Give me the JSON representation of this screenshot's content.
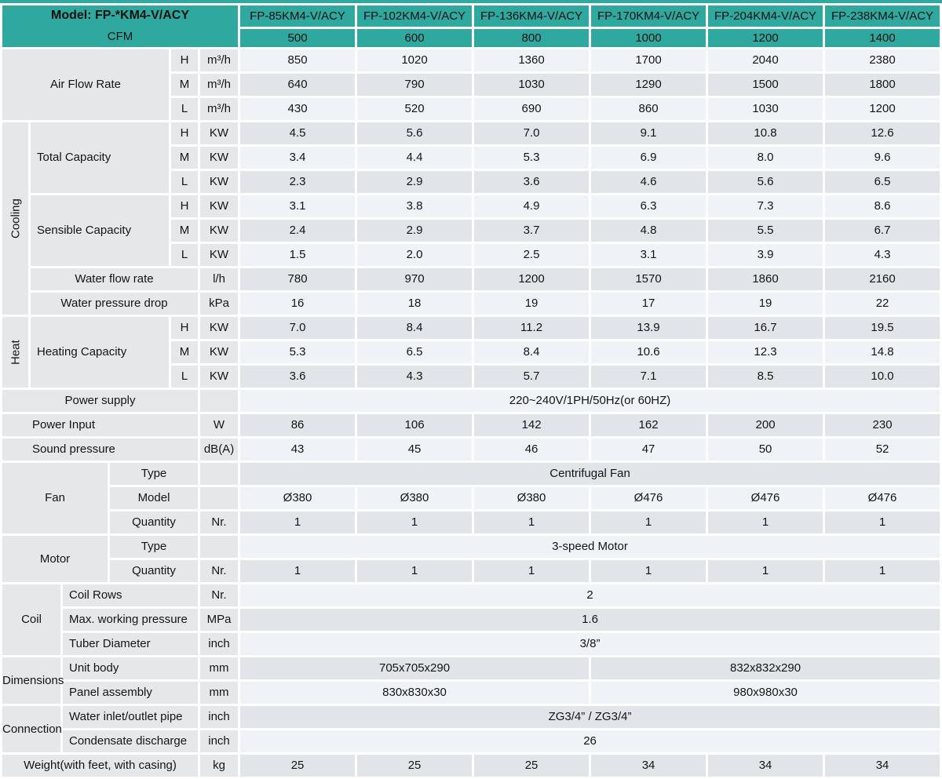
{
  "title": "Fan coil unit specification table",
  "colors": {
    "teal_header": "#2FA9A0",
    "row_light": "#EFF2F6",
    "row_gray": "#E1E4E8",
    "label_bg": "#E5E7E9",
    "grid_line": "#FFFFFF"
  },
  "header": {
    "model_label": "Model: FP-*KM4-V/ACY",
    "cfm_label": "CFM",
    "models": [
      "FP-85KM4-V/ACY",
      "FP-102KM4-V/ACY",
      "FP-136KM4-V/ACY",
      "FP-170KM4-V/ACY",
      "FP-204KM4-V/ACY",
      "FP-238KM4-V/ACY"
    ],
    "cfm_values": [
      "500",
      "600",
      "800",
      "1000",
      "1200",
      "1400"
    ]
  },
  "grid": {
    "cols": [
      36,
      41,
      60,
      78,
      37,
      51,
      149,
      149,
      149,
      149,
      149,
      149
    ],
    "rows": [
      {
        "name": "header-models",
        "cls": "h1",
        "cells": [
          {
            "t": "",
            "cs": 6,
            "rs": 2,
            "cls": "mhead",
            "n": "model-cfm-header",
            "two_line": true
          },
          {
            "t": "FP-85KM4-V/ACY",
            "cls": "head",
            "n": "col-header-fp85"
          },
          {
            "t": "FP-102KM4-V/ACY",
            "cls": "head",
            "n": "col-header-fp102"
          },
          {
            "t": "FP-136KM4-V/ACY",
            "cls": "head",
            "n": "col-header-fp136"
          },
          {
            "t": "FP-170KM4-V/ACY",
            "cls": "head",
            "n": "col-header-fp170"
          },
          {
            "t": "FP-204KM4-V/ACY",
            "cls": "head",
            "n": "col-header-fp204"
          },
          {
            "t": "FP-238KM4-V/ACY",
            "cls": "head",
            "n": "col-header-fp238"
          }
        ]
      },
      {
        "name": "header-cfm",
        "cls": "h2",
        "cells": [
          {
            "t": "500",
            "cls": "head",
            "n": "cfm-value-1"
          },
          {
            "t": "600",
            "cls": "head",
            "n": "cfm-value-2"
          },
          {
            "t": "800",
            "cls": "head",
            "n": "cfm-value-3"
          },
          {
            "t": "1000",
            "cls": "head",
            "n": "cfm-value-4"
          },
          {
            "t": "1200",
            "cls": "head",
            "n": "cfm-value-5"
          },
          {
            "t": "1400",
            "cls": "head",
            "n": "cfm-value-6"
          }
        ]
      },
      {
        "name": "air-flow-rate-h",
        "cls": "a",
        "cells": [
          {
            "t": "Air Flow Rate",
            "cs": 4,
            "rs": 3,
            "cls": "lab",
            "n": "air-flow-rate-label"
          },
          {
            "t": "H",
            "cls": "lab"
          },
          {
            "t": "m³/h",
            "cls": "lab"
          },
          {
            "t": "850"
          },
          {
            "t": "1020"
          },
          {
            "t": "1360"
          },
          {
            "t": "1700"
          },
          {
            "t": "2040"
          },
          {
            "t": "2380"
          }
        ]
      },
      {
        "name": "air-flow-rate-m",
        "cls": "b",
        "cells": [
          {
            "t": "M",
            "cls": "lab"
          },
          {
            "t": "m³/h",
            "cls": "lab"
          },
          {
            "t": "640"
          },
          {
            "t": "790"
          },
          {
            "t": "1030"
          },
          {
            "t": "1290"
          },
          {
            "t": "1500"
          },
          {
            "t": "1800"
          }
        ]
      },
      {
        "name": "air-flow-rate-l",
        "cls": "a",
        "cells": [
          {
            "t": "L",
            "cls": "lab"
          },
          {
            "t": "m³/h",
            "cls": "lab"
          },
          {
            "t": "430"
          },
          {
            "t": "520"
          },
          {
            "t": "690"
          },
          {
            "t": "860"
          },
          {
            "t": "1030"
          },
          {
            "t": "1200"
          }
        ]
      },
      {
        "name": "total-capacity-h",
        "cls": "b",
        "cells": [
          {
            "t": "Cooling",
            "rs": 8,
            "cls": "vert",
            "n": "cooling-group-label"
          },
          {
            "t": "Total Capacity",
            "cs": 3,
            "rs": 3,
            "cls": "lab-l",
            "n": "total-capacity-label"
          },
          {
            "t": "H",
            "cls": "lab"
          },
          {
            "t": "KW",
            "cls": "lab"
          },
          {
            "t": "4.5"
          },
          {
            "t": "5.6"
          },
          {
            "t": "7.0"
          },
          {
            "t": "9.1"
          },
          {
            "t": "10.8"
          },
          {
            "t": "12.6"
          }
        ]
      },
      {
        "name": "total-capacity-m",
        "cls": "a",
        "cells": [
          {
            "t": "M",
            "cls": "lab"
          },
          {
            "t": "KW",
            "cls": "lab"
          },
          {
            "t": "3.4"
          },
          {
            "t": "4.4"
          },
          {
            "t": "5.3"
          },
          {
            "t": "6.9"
          },
          {
            "t": "8.0"
          },
          {
            "t": "9.6"
          }
        ]
      },
      {
        "name": "total-capacity-l",
        "cls": "b",
        "cells": [
          {
            "t": "L",
            "cls": "lab"
          },
          {
            "t": "KW",
            "cls": "lab"
          },
          {
            "t": "2.3"
          },
          {
            "t": "2.9"
          },
          {
            "t": "3.6"
          },
          {
            "t": "4.6"
          },
          {
            "t": "5.6"
          },
          {
            "t": "6.5"
          }
        ]
      },
      {
        "name": "sensible-capacity-h",
        "cls": "a",
        "cells": [
          {
            "t": "Sensible Capacity",
            "cs": 3,
            "rs": 3,
            "cls": "lab-l",
            "n": "sensible-capacity-label"
          },
          {
            "t": "H",
            "cls": "lab"
          },
          {
            "t": "KW",
            "cls": "lab"
          },
          {
            "t": "3.1"
          },
          {
            "t": "3.8"
          },
          {
            "t": "4.9"
          },
          {
            "t": "6.3"
          },
          {
            "t": "7.3"
          },
          {
            "t": "8.6"
          }
        ]
      },
      {
        "name": "sensible-capacity-m",
        "cls": "b",
        "cells": [
          {
            "t": "M",
            "cls": "lab"
          },
          {
            "t": "KW",
            "cls": "lab"
          },
          {
            "t": "2.4"
          },
          {
            "t": "2.9"
          },
          {
            "t": "3.7"
          },
          {
            "t": "4.8"
          },
          {
            "t": "5.5"
          },
          {
            "t": "6.7"
          }
        ]
      },
      {
        "name": "sensible-capacity-l",
        "cls": "a",
        "cells": [
          {
            "t": "L",
            "cls": "lab"
          },
          {
            "t": "KW",
            "cls": "lab"
          },
          {
            "t": "1.5"
          },
          {
            "t": "2.0"
          },
          {
            "t": "2.5"
          },
          {
            "t": "3.1"
          },
          {
            "t": "3.9"
          },
          {
            "t": "4.3"
          }
        ]
      },
      {
        "name": "water-flow-rate",
        "cls": "b",
        "cells": [
          {
            "t": "Water flow rate",
            "cs": 4,
            "cls": "lab",
            "n": "water-flow-rate-label"
          },
          {
            "t": "l/h",
            "cls": "lab"
          },
          {
            "t": "780"
          },
          {
            "t": "970"
          },
          {
            "t": "1200"
          },
          {
            "t": "1570"
          },
          {
            "t": "1860"
          },
          {
            "t": "2160"
          }
        ]
      },
      {
        "name": "water-pressure-drop",
        "cls": "a",
        "cells": [
          {
            "t": "Water pressure drop",
            "cs": 4,
            "cls": "lab",
            "n": "water-pressure-drop-label"
          },
          {
            "t": "kPa",
            "cls": "lab"
          },
          {
            "t": "16"
          },
          {
            "t": "18"
          },
          {
            "t": "19"
          },
          {
            "t": "17"
          },
          {
            "t": "19"
          },
          {
            "t": "22"
          }
        ]
      },
      {
        "name": "heating-capacity-h",
        "cls": "b",
        "cells": [
          {
            "t": "Heat",
            "rs": 3,
            "cls": "vert",
            "n": "heat-group-label"
          },
          {
            "t": "Heating Capacity",
            "cs": 3,
            "rs": 3,
            "cls": "lab-l",
            "n": "heating-capacity-label"
          },
          {
            "t": "H",
            "cls": "lab"
          },
          {
            "t": "KW",
            "cls": "lab"
          },
          {
            "t": "7.0"
          },
          {
            "t": "8.4"
          },
          {
            "t": "11.2"
          },
          {
            "t": "13.9"
          },
          {
            "t": "16.7"
          },
          {
            "t": "19.5"
          }
        ]
      },
      {
        "name": "heating-capacity-m",
        "cls": "a",
        "cells": [
          {
            "t": "M",
            "cls": "lab"
          },
          {
            "t": "KW",
            "cls": "lab"
          },
          {
            "t": "5.3"
          },
          {
            "t": "6.5"
          },
          {
            "t": "8.4"
          },
          {
            "t": "10.6"
          },
          {
            "t": "12.3"
          },
          {
            "t": "14.8"
          }
        ]
      },
      {
        "name": "heating-capacity-l",
        "cls": "b",
        "cells": [
          {
            "t": "L",
            "cls": "lab"
          },
          {
            "t": "KW",
            "cls": "lab"
          },
          {
            "t": "3.6"
          },
          {
            "t": "4.3"
          },
          {
            "t": "5.7"
          },
          {
            "t": "7.1"
          },
          {
            "t": "8.5"
          },
          {
            "t": "10.0"
          }
        ]
      },
      {
        "name": "power-supply",
        "cls": "a",
        "cells": [
          {
            "t": "Power supply",
            "cs": 5,
            "cls": "lab",
            "n": "power-supply-label"
          },
          {
            "t": "",
            "cls": "lab"
          },
          {
            "t": "220~240V/1PH/50Hz(or 60HZ)",
            "cs": 6,
            "n": "power-supply-value"
          }
        ]
      },
      {
        "name": "power-input",
        "cls": "b",
        "cells": [
          {
            "t": "Power Input",
            "cs": 5,
            "cls": "lab-l2",
            "n": "power-input-label"
          },
          {
            "t": "W",
            "cls": "lab"
          },
          {
            "t": "86"
          },
          {
            "t": "106"
          },
          {
            "t": "142"
          },
          {
            "t": "162"
          },
          {
            "t": "200"
          },
          {
            "t": "230"
          }
        ]
      },
      {
        "name": "sound-pressure",
        "cls": "a",
        "cells": [
          {
            "t": "Sound pressure",
            "cs": 5,
            "cls": "lab-l2",
            "n": "sound-pressure-label"
          },
          {
            "t": "dB(A)",
            "cls": "lab"
          },
          {
            "t": "43"
          },
          {
            "t": "45"
          },
          {
            "t": "46"
          },
          {
            "t": "47"
          },
          {
            "t": "50"
          },
          {
            "t": "52"
          }
        ]
      },
      {
        "name": "fan-type",
        "cls": "b",
        "cells": [
          {
            "t": "Fan",
            "cs": 3,
            "rs": 3,
            "cls": "lab",
            "n": "fan-group-label"
          },
          {
            "t": "Type",
            "cs": 2,
            "cls": "lab"
          },
          {
            "t": "",
            "cls": "lab"
          },
          {
            "t": "Centrifugal Fan",
            "cs": 6,
            "n": "fan-type-value"
          }
        ]
      },
      {
        "name": "fan-model",
        "cls": "a",
        "cells": [
          {
            "t": "Model",
            "cs": 2,
            "cls": "lab"
          },
          {
            "t": "",
            "cls": "lab"
          },
          {
            "t": "Ø380"
          },
          {
            "t": "Ø380"
          },
          {
            "t": "Ø380"
          },
          {
            "t": "Ø476"
          },
          {
            "t": "Ø476"
          },
          {
            "t": "Ø476"
          }
        ]
      },
      {
        "name": "fan-quantity",
        "cls": "b",
        "cells": [
          {
            "t": "Quantity",
            "cs": 2,
            "cls": "lab"
          },
          {
            "t": "Nr.",
            "cls": "lab"
          },
          {
            "t": "1"
          },
          {
            "t": "1"
          },
          {
            "t": "1"
          },
          {
            "t": "1"
          },
          {
            "t": "1"
          },
          {
            "t": "1"
          }
        ]
      },
      {
        "name": "motor-type",
        "cls": "a",
        "cells": [
          {
            "t": "Motor",
            "cs": 3,
            "rs": 2,
            "cls": "lab",
            "n": "motor-group-label"
          },
          {
            "t": "Type",
            "cs": 2,
            "cls": "lab"
          },
          {
            "t": "",
            "cls": "lab"
          },
          {
            "t": "3-speed Motor",
            "cs": 6,
            "n": "motor-type-value"
          }
        ]
      },
      {
        "name": "motor-quantity",
        "cls": "b",
        "cells": [
          {
            "t": "Quantity",
            "cs": 2,
            "cls": "lab"
          },
          {
            "t": "Nr.",
            "cls": "lab"
          },
          {
            "t": "1"
          },
          {
            "t": "1"
          },
          {
            "t": "1"
          },
          {
            "t": "1"
          },
          {
            "t": "1"
          },
          {
            "t": "1"
          }
        ]
      },
      {
        "name": "coil-rows",
        "cls": "a",
        "cells": [
          {
            "t": "Coil",
            "cs": 2,
            "rs": 3,
            "cls": "lab",
            "n": "coil-group-label"
          },
          {
            "t": "Coil Rows",
            "cs": 3,
            "cls": "lab-l",
            "n": "coil-rows-label"
          },
          {
            "t": "Nr.",
            "cls": "lab"
          },
          {
            "t": "2",
            "cs": 6,
            "n": "coil-rows-value"
          }
        ]
      },
      {
        "name": "max-working-pressure",
        "cls": "b",
        "cells": [
          {
            "t": "Max. working pressure",
            "cs": 3,
            "cls": "lab-l",
            "n": "max-working-pressure-label"
          },
          {
            "t": "MPa",
            "cls": "lab"
          },
          {
            "t": "1.6",
            "cs": 6,
            "n": "max-working-pressure-value"
          }
        ]
      },
      {
        "name": "tuber-diameter",
        "cls": "a",
        "cells": [
          {
            "t": "Tuber Diameter",
            "cs": 3,
            "cls": "lab-l",
            "n": "tuber-diameter-label"
          },
          {
            "t": "inch",
            "cls": "lab"
          },
          {
            "t": "3/8”",
            "cs": 6,
            "n": "tuber-diameter-value"
          }
        ]
      },
      {
        "name": "unit-body",
        "cls": "b",
        "cells": [
          {
            "t": "Dimensions",
            "cs": 2,
            "rs": 2,
            "cls": "lab",
            "n": "dimensions-group-label"
          },
          {
            "t": "Unit body",
            "cs": 3,
            "cls": "lab-l",
            "n": "unit-body-label"
          },
          {
            "t": "mm",
            "cls": "lab"
          },
          {
            "t": "705x705x290",
            "cs": 3,
            "n": "unit-body-value-small"
          },
          {
            "t": "832x832x290",
            "cs": 3,
            "n": "unit-body-value-large"
          }
        ]
      },
      {
        "name": "panel-assembly",
        "cls": "a",
        "cells": [
          {
            "t": "Panel assembly",
            "cs": 3,
            "cls": "lab-l",
            "n": "panel-assembly-label"
          },
          {
            "t": "mm",
            "cls": "lab"
          },
          {
            "t": "830x830x30",
            "cs": 3,
            "n": "panel-assembly-value-small"
          },
          {
            "t": "980x980x30",
            "cs": 3,
            "n": "panel-assembly-value-large"
          }
        ]
      },
      {
        "name": "water-inlet-outlet-pipe",
        "cls": "b",
        "cells": [
          {
            "t": "Connection",
            "cs": 2,
            "rs": 2,
            "cls": "lab",
            "n": "connection-group-label"
          },
          {
            "t": "Water inlet/outlet pipe",
            "cs": 3,
            "cls": "lab-l",
            "n": "water-inlet-outlet-pipe-label"
          },
          {
            "t": "inch",
            "cls": "lab"
          },
          {
            "t": "ZG3/4” / ZG3/4”",
            "cs": 6,
            "n": "water-inlet-outlet-pipe-value"
          }
        ]
      },
      {
        "name": "condensate-discharge",
        "cls": "a",
        "cells": [
          {
            "t": "Condensate discharge",
            "cs": 3,
            "cls": "lab-l",
            "n": "condensate-discharge-label"
          },
          {
            "t": "inch",
            "cls": "lab"
          },
          {
            "t": "26",
            "cs": 6,
            "n": "condensate-discharge-value"
          }
        ]
      },
      {
        "name": "weight",
        "cls": "b",
        "cells": [
          {
            "t": "Weight(with feet, with casing)",
            "cs": 5,
            "cls": "lab",
            "n": "weight-label"
          },
          {
            "t": "kg",
            "cls": "lab"
          },
          {
            "t": "25"
          },
          {
            "t": "25"
          },
          {
            "t": "25"
          },
          {
            "t": "34"
          },
          {
            "t": "34"
          },
          {
            "t": "34"
          }
        ]
      }
    ]
  }
}
